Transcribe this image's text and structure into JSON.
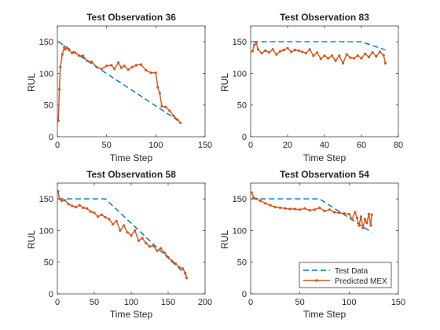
{
  "chart_data": [
    {
      "type": "line",
      "title": "Test Observation 36",
      "xlabel": "Time Step",
      "ylabel": "RUL",
      "xlim": [
        0,
        150
      ],
      "ylim": [
        0,
        175
      ],
      "xticks": [
        0,
        50,
        100,
        150
      ],
      "yticks": [
        0,
        50,
        100,
        150
      ],
      "series": [
        {
          "name": "Test Data",
          "style": "dashed",
          "color": "#0072bd",
          "x": [
            1,
            126
          ],
          "y": [
            150,
            22
          ]
        },
        {
          "name": "Predicted MEX",
          "style": "solid-dot",
          "color": "#d95319",
          "x": [
            1,
            2,
            3,
            5,
            7,
            8,
            10,
            12,
            15,
            18,
            22,
            26,
            30,
            35,
            40,
            45,
            50,
            55,
            58,
            62,
            65,
            68,
            72,
            76,
            80,
            85,
            90,
            95,
            100,
            102,
            104,
            106,
            110,
            114,
            118,
            122,
            125
          ],
          "y": [
            25,
            75,
            110,
            130,
            142,
            138,
            140,
            137,
            132,
            133,
            128,
            128,
            120,
            118,
            110,
            107,
            112,
            113,
            107,
            117,
            109,
            112,
            106,
            110,
            113,
            114,
            105,
            101,
            101,
            78,
            69,
            48,
            47,
            41,
            33,
            27,
            22
          ]
        }
      ]
    },
    {
      "type": "line",
      "title": "Test Observation 83",
      "xlabel": "Time Step",
      "ylabel": "RUL",
      "xlim": [
        0,
        80
      ],
      "ylim": [
        0,
        175
      ],
      "xticks": [
        0,
        20,
        40,
        60,
        80
      ],
      "yticks": [
        0,
        50,
        100,
        150
      ],
      "series": [
        {
          "name": "Test Data",
          "style": "dashed",
          "color": "#0072bd",
          "x": [
            1,
            60,
            73
          ],
          "y": [
            150,
            150,
            137
          ]
        },
        {
          "name": "Predicted MEX",
          "style": "solid-dot",
          "color": "#d95319",
          "x": [
            1,
            2,
            3,
            4,
            6,
            8,
            10,
            12,
            14,
            16,
            18,
            20,
            22,
            24,
            26,
            28,
            30,
            32,
            34,
            36,
            38,
            40,
            42,
            44,
            46,
            48,
            50,
            52,
            54,
            56,
            58,
            60,
            62,
            64,
            66,
            68,
            70,
            72,
            73
          ],
          "y": [
            135,
            145,
            148,
            138,
            132,
            136,
            133,
            138,
            130,
            135,
            137,
            140,
            134,
            137,
            136,
            134,
            132,
            138,
            128,
            133,
            123,
            128,
            124,
            128,
            120,
            128,
            116,
            130,
            125,
            124,
            128,
            124,
            131,
            126,
            133,
            127,
            134,
            129,
            116
          ]
        }
      ]
    },
    {
      "type": "line",
      "title": "Test Observation 58",
      "xlabel": "Time Step",
      "ylabel": "RUL",
      "xlim": [
        0,
        200
      ],
      "ylim": [
        0,
        175
      ],
      "xticks": [
        0,
        50,
        100,
        150,
        200
      ],
      "yticks": [
        0,
        50,
        100,
        150
      ],
      "series": [
        {
          "name": "Test Data",
          "style": "dashed",
          "color": "#0072bd",
          "x": [
            1,
            65,
            175
          ],
          "y": [
            150,
            150,
            29
          ]
        },
        {
          "name": "Predicted MEX",
          "style": "solid-dot",
          "color": "#d95319",
          "x": [
            1,
            3,
            6,
            10,
            15,
            20,
            25,
            30,
            35,
            40,
            45,
            50,
            55,
            60,
            65,
            70,
            75,
            80,
            85,
            90,
            95,
            100,
            105,
            110,
            115,
            120,
            125,
            130,
            135,
            140,
            145,
            150,
            155,
            160,
            165,
            170,
            173,
            175
          ],
          "y": [
            162,
            150,
            147,
            148,
            142,
            139,
            137,
            140,
            136,
            135,
            130,
            128,
            122,
            125,
            121,
            118,
            110,
            115,
            100,
            108,
            97,
            92,
            100,
            84,
            88,
            80,
            75,
            76,
            68,
            72,
            65,
            58,
            52,
            48,
            42,
            40,
            33,
            25
          ]
        }
      ]
    },
    {
      "type": "line",
      "title": "Test Observation 54",
      "xlabel": "Time Step",
      "ylabel": "RUL",
      "xlim": [
        0,
        150
      ],
      "ylim": [
        0,
        175
      ],
      "xticks": [
        0,
        50,
        100,
        150
      ],
      "yticks": [
        0,
        50,
        100,
        150
      ],
      "series": [
        {
          "name": "Test Data",
          "style": "dashed",
          "color": "#0072bd",
          "x": [
            1,
            70,
            123
          ],
          "y": [
            150,
            150,
            97
          ]
        },
        {
          "name": "Predicted MEX",
          "style": "solid-dot",
          "color": "#d95319",
          "x": [
            1,
            3,
            6,
            10,
            15,
            20,
            25,
            30,
            35,
            40,
            45,
            50,
            55,
            60,
            65,
            70,
            75,
            80,
            85,
            90,
            95,
            100,
            103,
            106,
            108,
            110,
            112,
            114,
            116,
            118,
            120,
            122,
            123
          ],
          "y": [
            160,
            152,
            150,
            147,
            143,
            140,
            137,
            136,
            135,
            134,
            134,
            133,
            135,
            132,
            133,
            136,
            131,
            133,
            129,
            128,
            127,
            126,
            118,
            129,
            120,
            108,
            122,
            104,
            118,
            112,
            126,
            108,
            125
          ]
        }
      ],
      "legend": {
        "location": "bottom-right",
        "entries": [
          "Test Data",
          "Predicted MEX"
        ]
      }
    }
  ]
}
